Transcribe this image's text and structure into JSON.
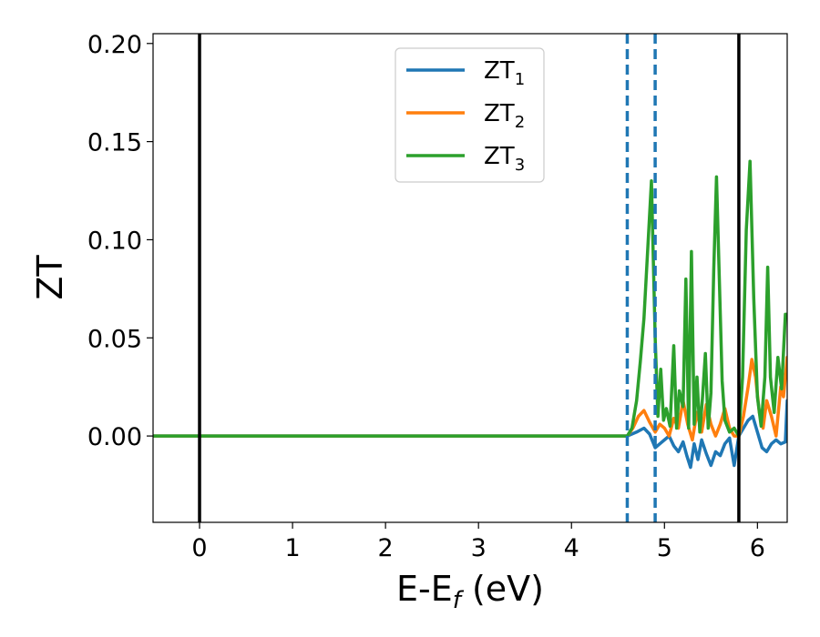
{
  "chart_data": {
    "type": "line",
    "xlabel": "E-E",
    "xlabel_sub": "f",
    "xlabel_unit": " (eV)",
    "ylabel": "ZT",
    "xlim": [
      -0.5,
      6.32
    ],
    "ylim": [
      -0.044,
      0.205
    ],
    "x_ticks": [
      0,
      1,
      2,
      3,
      4,
      5,
      6
    ],
    "x_tick_labels": [
      "0",
      "1",
      "2",
      "3",
      "4",
      "5",
      "6"
    ],
    "y_ticks": [
      0.0,
      0.05,
      0.1,
      0.15,
      0.2
    ],
    "y_tick_labels": [
      "0.00",
      "0.05",
      "0.10",
      "0.15",
      "0.20"
    ],
    "grid": false,
    "legend_position": "top-center",
    "vlines": [
      {
        "x": 0.0,
        "style": "solid",
        "color": "#000000"
      },
      {
        "x": 5.8,
        "style": "solid",
        "color": "#000000"
      },
      {
        "x": 4.6,
        "style": "dashed",
        "color": "#1f77b4"
      },
      {
        "x": 4.9,
        "style": "dashed",
        "color": "#1f77b4"
      }
    ],
    "series": [
      {
        "name": "ZT",
        "name_sub": "1",
        "color": "#1f77b4",
        "x": [
          -0.5,
          4.6,
          4.7,
          4.78,
          4.84,
          4.9,
          4.95,
          5.0,
          5.05,
          5.1,
          5.15,
          5.2,
          5.24,
          5.28,
          5.32,
          5.36,
          5.4,
          5.45,
          5.5,
          5.55,
          5.6,
          5.65,
          5.7,
          5.75,
          5.8,
          5.85,
          5.9,
          5.95,
          6.0,
          6.05,
          6.1,
          6.15,
          6.2,
          6.25,
          6.3,
          6.32
        ],
        "values": [
          0.0,
          0.0,
          0.002,
          0.004,
          0.001,
          -0.006,
          -0.004,
          -0.002,
          0.0,
          -0.005,
          -0.008,
          -0.003,
          -0.01,
          -0.016,
          -0.004,
          -0.012,
          -0.002,
          -0.009,
          -0.015,
          -0.008,
          -0.01,
          -0.004,
          -0.001,
          -0.015,
          0.0,
          0.004,
          0.008,
          0.01,
          0.002,
          -0.006,
          -0.008,
          -0.004,
          -0.002,
          -0.004,
          -0.003,
          0.018
        ]
      },
      {
        "name": "ZT",
        "name_sub": "2",
        "color": "#ff7f0e",
        "x": [
          -0.5,
          4.6,
          4.66,
          4.72,
          4.78,
          4.84,
          4.9,
          4.95,
          5.0,
          5.05,
          5.1,
          5.15,
          5.2,
          5.25,
          5.3,
          5.35,
          5.4,
          5.45,
          5.5,
          5.55,
          5.6,
          5.65,
          5.7,
          5.75,
          5.8,
          5.85,
          5.9,
          5.94,
          5.98,
          6.02,
          6.06,
          6.1,
          6.15,
          6.2,
          6.25,
          6.28,
          6.32
        ],
        "values": [
          0.0,
          0.0,
          0.004,
          0.01,
          0.013,
          0.007,
          0.002,
          0.006,
          0.004,
          0.0,
          0.009,
          0.004,
          0.018,
          0.006,
          -0.002,
          0.012,
          0.002,
          0.016,
          0.006,
          0.0,
          0.006,
          0.014,
          0.004,
          0.0,
          0.0,
          0.01,
          0.025,
          0.039,
          0.03,
          0.012,
          0.004,
          0.018,
          0.01,
          0.0,
          0.025,
          0.02,
          0.04
        ]
      },
      {
        "name": "ZT",
        "name_sub": "3",
        "color": "#2ca02c",
        "x": [
          -0.5,
          4.6,
          4.65,
          4.7,
          4.74,
          4.78,
          4.82,
          4.86,
          4.9,
          4.93,
          4.96,
          4.99,
          5.02,
          5.06,
          5.1,
          5.13,
          5.16,
          5.2,
          5.23,
          5.26,
          5.29,
          5.32,
          5.35,
          5.38,
          5.41,
          5.44,
          5.47,
          5.5,
          5.53,
          5.56,
          5.59,
          5.62,
          5.65,
          5.7,
          5.75,
          5.8,
          5.84,
          5.88,
          5.92,
          5.96,
          6.0,
          6.04,
          6.08,
          6.11,
          6.14,
          6.18,
          6.22,
          6.26,
          6.3,
          6.32
        ],
        "values": [
          0.0,
          0.0,
          0.004,
          0.018,
          0.038,
          0.06,
          0.095,
          0.13,
          0.05,
          0.01,
          0.034,
          0.008,
          0.014,
          0.005,
          0.046,
          0.004,
          0.023,
          0.015,
          0.08,
          0.004,
          0.094,
          0.006,
          0.03,
          0.002,
          0.02,
          0.042,
          0.004,
          0.022,
          0.085,
          0.132,
          0.08,
          0.028,
          0.008,
          0.002,
          0.004,
          0.0,
          0.03,
          0.105,
          0.14,
          0.07,
          0.02,
          0.005,
          0.03,
          0.086,
          0.03,
          0.012,
          0.04,
          0.024,
          0.062,
          0.062
        ]
      }
    ]
  }
}
